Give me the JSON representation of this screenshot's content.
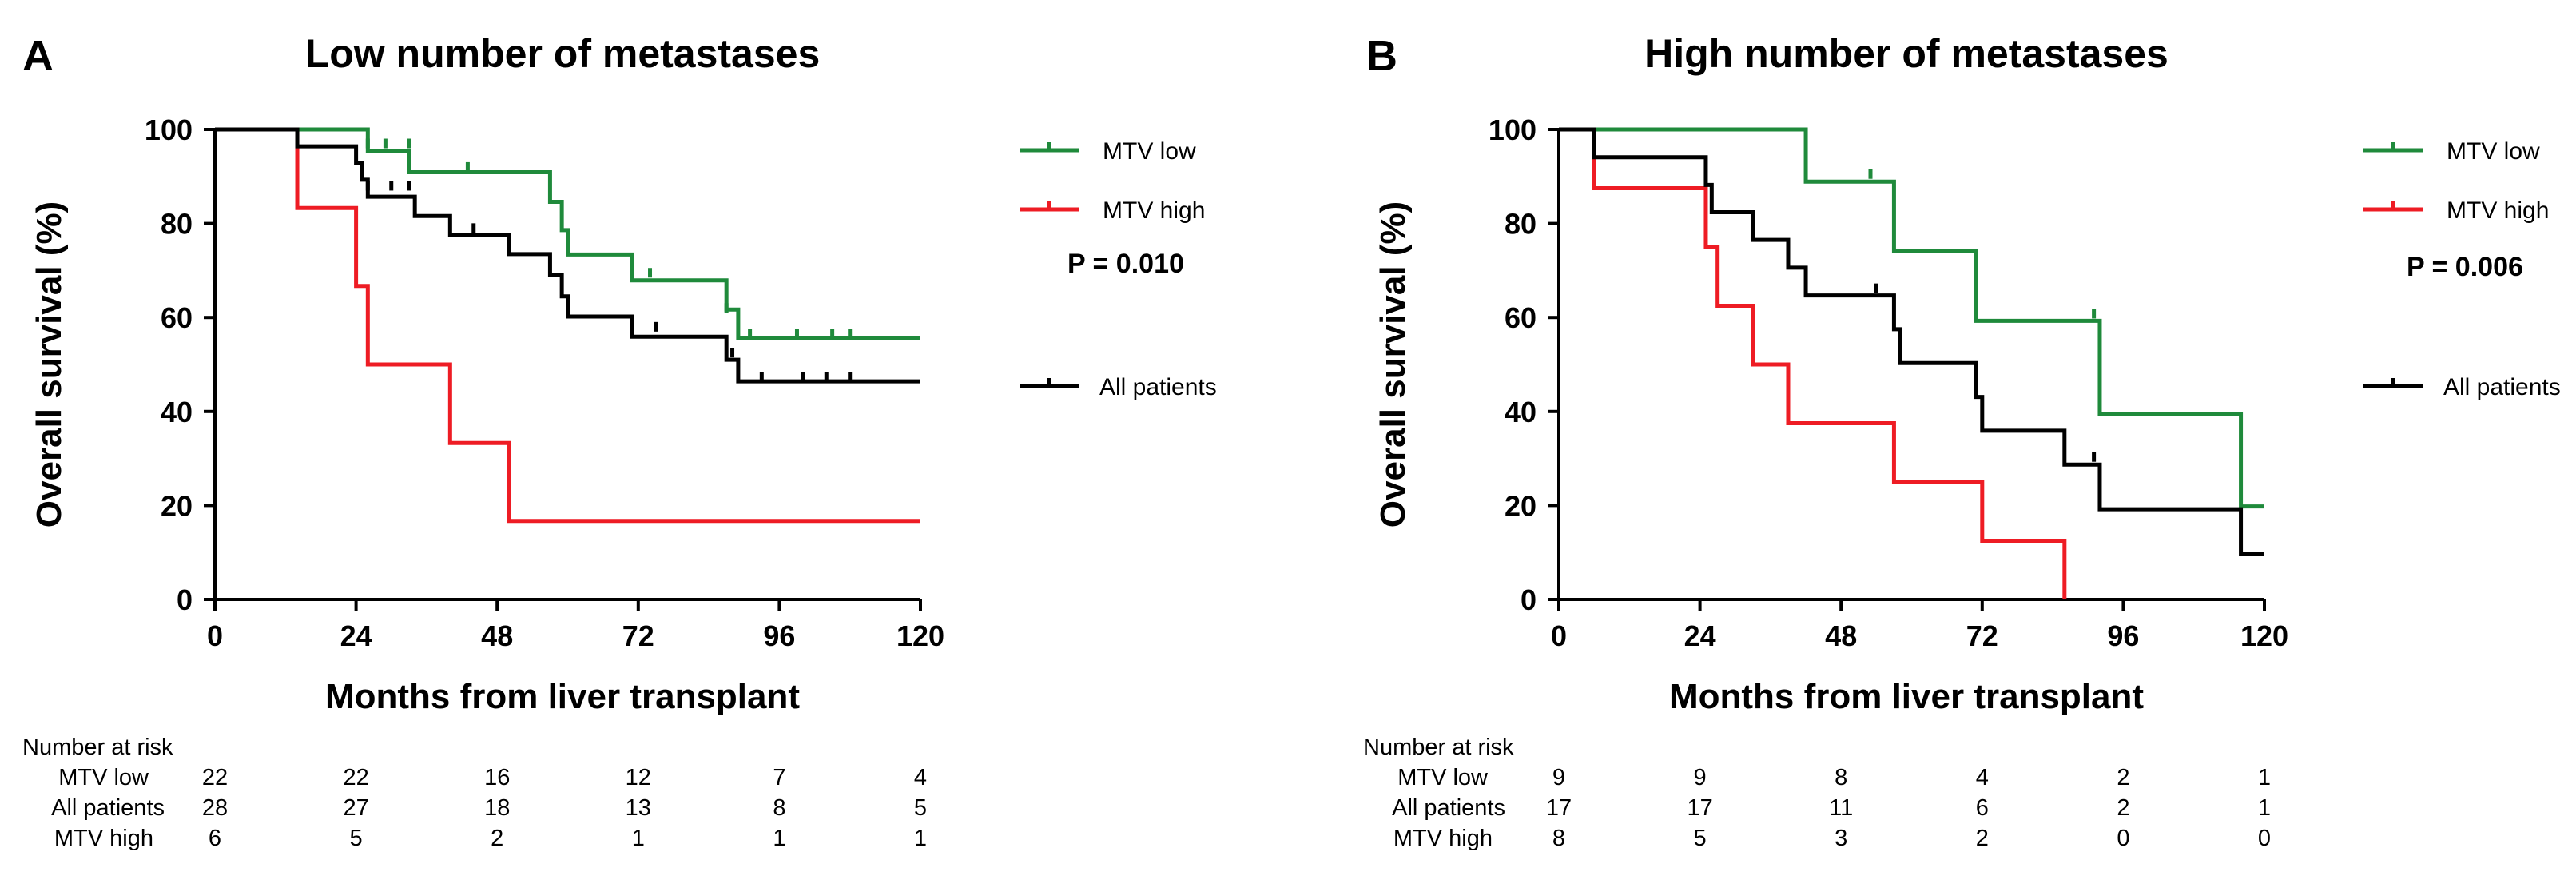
{
  "chart_data": [
    {
      "type": "line",
      "subtype": "kaplan-meier",
      "panel": "A",
      "title": "Low number of metastases",
      "xlabel": "Months from liver transplant",
      "ylabel": "Overall survival (%)",
      "xlim": [
        0,
        120
      ],
      "ylim": [
        0,
        100
      ],
      "xticks": [
        0,
        24,
        48,
        72,
        96,
        120
      ],
      "yticks": [
        0,
        20,
        40,
        60,
        80,
        100
      ],
      "p_value": "P = 0.010",
      "legend": [
        "MTV low",
        "MTV high",
        "All patients"
      ],
      "series": [
        {
          "name": "MTV low",
          "color": "#1f8a3b",
          "steps": [
            [
              0,
              100
            ],
            [
              26,
              95.5
            ],
            [
              33,
              90.9
            ],
            [
              57,
              84.6
            ],
            [
              59,
              78.6
            ],
            [
              60,
              73.4
            ],
            [
              71,
              67.9
            ],
            [
              87,
              61.7
            ],
            [
              89,
              55.6
            ],
            [
              120,
              55.6
            ]
          ],
          "censors": [
            [
              26,
              96
            ],
            [
              29,
              96
            ],
            [
              33,
              96
            ],
            [
              43,
              91
            ],
            [
              74,
              68.5
            ],
            [
              87,
              61
            ],
            [
              91,
              55.6
            ],
            [
              99,
              55.6
            ],
            [
              105,
              55.6
            ],
            [
              108,
              55.6
            ]
          ]
        },
        {
          "name": "MTV high",
          "color": "#ee1c24",
          "steps": [
            [
              0,
              100
            ],
            [
              14,
              83.3
            ],
            [
              24,
              66.7
            ],
            [
              26,
              50
            ],
            [
              40,
              33.3
            ],
            [
              50,
              16.7
            ],
            [
              120,
              16.7
            ]
          ],
          "censors": []
        },
        {
          "name": "All patients",
          "color": "#000000",
          "steps": [
            [
              0,
              100
            ],
            [
              14,
              96.4
            ],
            [
              24,
              92.9
            ],
            [
              25,
              89.3
            ],
            [
              26,
              85.7
            ],
            [
              34,
              81.6
            ],
            [
              40,
              77.6
            ],
            [
              50,
              73.5
            ],
            [
              57,
              69
            ],
            [
              59,
              64.5
            ],
            [
              60,
              60.2
            ],
            [
              71,
              55.9
            ],
            [
              87,
              51
            ],
            [
              89,
              46.4
            ],
            [
              120,
              46.4
            ]
          ],
          "censors": [
            [
              26,
              87
            ],
            [
              30,
              87
            ],
            [
              33,
              87
            ],
            [
              44,
              78
            ],
            [
              75,
              57
            ],
            [
              88,
              51.5
            ],
            [
              93,
              46.4
            ],
            [
              100,
              46.4
            ],
            [
              104,
              46.4
            ],
            [
              108,
              46.4
            ]
          ]
        }
      ],
      "risk_table": {
        "heading": "Number at risk",
        "rows": [
          {
            "label": "MTV low",
            "values": [
              "22",
              "22",
              "16",
              "12",
              "7",
              "4"
            ]
          },
          {
            "label": "All patients",
            "values": [
              "28",
              "27",
              "18",
              "13",
              "8",
              "5"
            ]
          },
          {
            "label": "MTV high",
            "values": [
              "6",
              "5",
              "2",
              "1",
              "1",
              "1"
            ]
          }
        ]
      }
    },
    {
      "type": "line",
      "subtype": "kaplan-meier",
      "panel": "B",
      "title": "High number of metastases",
      "xlabel": "Months from liver transplant",
      "ylabel": "Overall survival (%)",
      "xlim": [
        0,
        120
      ],
      "ylim": [
        0,
        100
      ],
      "xticks": [
        0,
        24,
        48,
        72,
        96,
        120
      ],
      "yticks": [
        0,
        20,
        40,
        60,
        80,
        100
      ],
      "p_value": "P = 0.006",
      "legend": [
        "MTV low",
        "MTV high",
        "All patients"
      ],
      "series": [
        {
          "name": "MTV low",
          "color": "#1f8a3b",
          "steps": [
            [
              0,
              100
            ],
            [
              42,
              88.9
            ],
            [
              57,
              74.1
            ],
            [
              71,
              59.3
            ],
            [
              92,
              39.5
            ],
            [
              116,
              19.8
            ],
            [
              120,
              19.8
            ]
          ],
          "censors": [
            [
              53,
              89.5
            ],
            [
              91,
              59.8
            ]
          ]
        },
        {
          "name": "MTV high",
          "color": "#ee1c24",
          "steps": [
            [
              0,
              100
            ],
            [
              6,
              87.5
            ],
            [
              25,
              75
            ],
            [
              27,
              62.5
            ],
            [
              33,
              50
            ],
            [
              39,
              37.5
            ],
            [
              57,
              25
            ],
            [
              72,
              12.5
            ],
            [
              86,
              0
            ]
          ],
          "censors": []
        },
        {
          "name": "All patients",
          "color": "#000000",
          "steps": [
            [
              0,
              100
            ],
            [
              6,
              94.1
            ],
            [
              25,
              88.2
            ],
            [
              26,
              82.4
            ],
            [
              33,
              76.5
            ],
            [
              39,
              70.6
            ],
            [
              42,
              64.7
            ],
            [
              57,
              57.5
            ],
            [
              58,
              50.3
            ],
            [
              71,
              43.1
            ],
            [
              72,
              35.9
            ],
            [
              86,
              28.7
            ],
            [
              92,
              19.2
            ],
            [
              116,
              9.6
            ],
            [
              120,
              9.6
            ]
          ],
          "censors": [
            [
              54,
              65.2
            ],
            [
              91,
              29.3
            ]
          ]
        }
      ],
      "risk_table": {
        "heading": "Number at risk",
        "rows": [
          {
            "label": "MTV low",
            "values": [
              "9",
              "9",
              "8",
              "4",
              "2",
              "1"
            ]
          },
          {
            "label": "All patients",
            "values": [
              "17",
              "17",
              "11",
              "6",
              "2",
              "1"
            ]
          },
          {
            "label": "MTV high",
            "values": [
              "8",
              "5",
              "3",
              "2",
              "0",
              "0"
            ]
          }
        ]
      }
    }
  ]
}
